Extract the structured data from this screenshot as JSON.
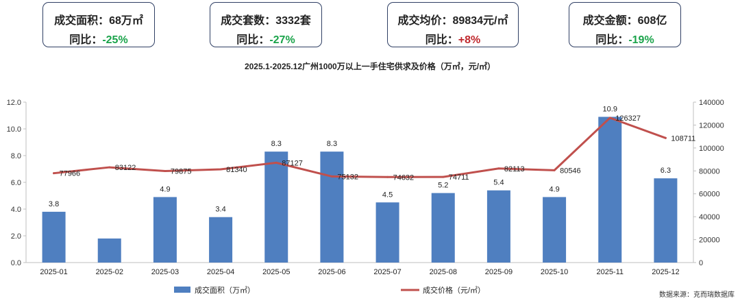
{
  "kpis": [
    {
      "label": "成交面积",
      "value": "68万㎡",
      "yoy_label": "同比",
      "yoy": "-25%",
      "yoy_color": "#1aa34a"
    },
    {
      "label": "成交套数",
      "value": "3332套",
      "yoy_label": "同比",
      "yoy": "-27%",
      "yoy_color": "#1aa34a"
    },
    {
      "label": "成交均价",
      "value": "89834元/㎡",
      "yoy_label": "同比",
      "yoy": "+8%",
      "yoy_color": "#c0282d"
    },
    {
      "label": "成交金额",
      "value": "608亿",
      "yoy_label": "同比",
      "yoy": "-19%",
      "yoy_color": "#1aa34a"
    }
  ],
  "source": "数据来源：克而瑞数据库",
  "chart_data": {
    "type": "bar",
    "title": "2025.1-2025.12广州1000万以上一手住宅供求及价格（万㎡，元/㎡）",
    "categories": [
      "2025-01",
      "2025-02",
      "2025-03",
      "2025-04",
      "2025-05",
      "2025-06",
      "2025-07",
      "2025-08",
      "2025-09",
      "2025-10",
      "2025-11",
      "2025-12"
    ],
    "series": [
      {
        "name": "成交面积（万㎡）",
        "type": "bar",
        "axis": "left",
        "color": "#4f7fc0",
        "values": [
          3.8,
          1.8,
          4.9,
          3.4,
          8.3,
          8.3,
          4.5,
          5.2,
          5.4,
          4.9,
          10.9,
          6.3
        ],
        "labels": [
          "3.8",
          "",
          "4.9",
          "3.4",
          "8.3",
          "8.3",
          "4.5",
          "5.2",
          "5.4",
          "4.9",
          "10.9",
          "6.3"
        ]
      },
      {
        "name": "成交价格（元/㎡）",
        "type": "line",
        "axis": "right",
        "color": "#c0504d",
        "values": [
          77966,
          83122,
          79875,
          81340,
          87127,
          75132,
          74632,
          74711,
          82113,
          80546,
          126327,
          108711
        ],
        "labels": [
          "77966",
          "83122",
          "79875",
          "81340",
          "87127",
          "75132",
          "74632",
          "74711",
          "82113",
          "80546",
          "126327",
          "108711"
        ]
      }
    ],
    "y_left": {
      "min": 0,
      "max": 12,
      "ticks": [
        "0.0",
        "2.0",
        "4.0",
        "6.0",
        "8.0",
        "10.0",
        "12.0"
      ]
    },
    "y_right": {
      "min": 0,
      "max": 140000,
      "ticks": [
        "0",
        "20000",
        "40000",
        "60000",
        "80000",
        "100000",
        "120000",
        "140000"
      ]
    },
    "legend_position": "bottom",
    "grid": false
  }
}
